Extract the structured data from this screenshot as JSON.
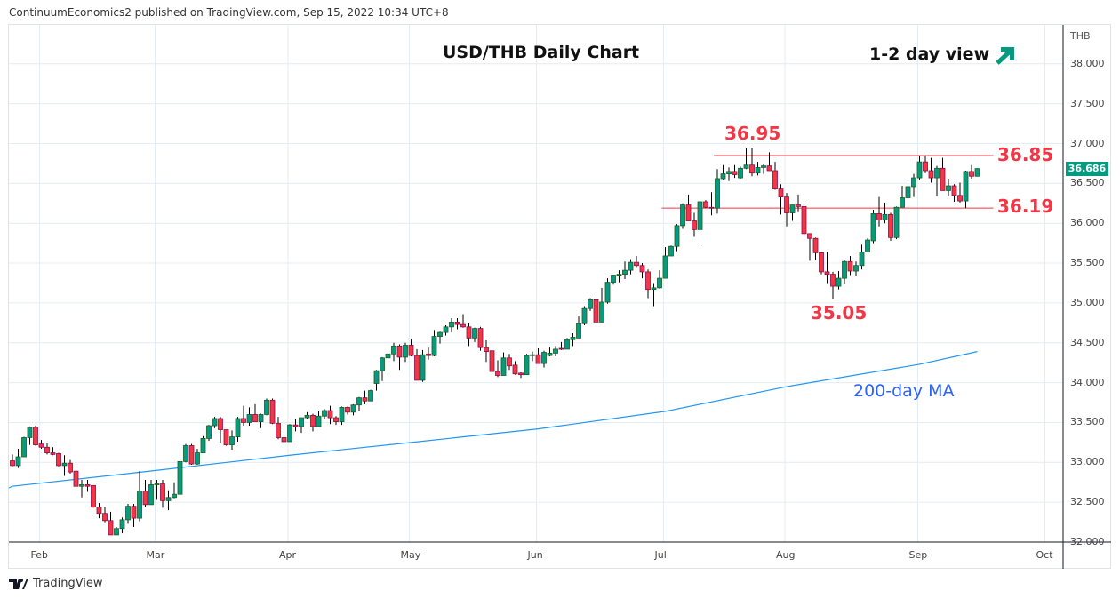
{
  "header": {
    "published": "ContinuumEconomics2 published on TradingView.com, Sep 15, 2022 10:34 UTC+8"
  },
  "footer": {
    "logo_text": "TradingView"
  },
  "colors": {
    "up": "#089981",
    "down": "#f23645",
    "ma": "#2196f3",
    "levels": "#f23645",
    "arrow": "#089981"
  },
  "chart_data": {
    "type": "candlestick",
    "title": "USD/THB Daily Chart",
    "view_label": "1-2 day view",
    "view_icon": "arrow-up-right-icon",
    "currency_label": "THB",
    "last_price": "36.686",
    "ylim": [
      32.0,
      38.0
    ],
    "y_ticks": [
      "38.000",
      "37.500",
      "37.000",
      "36.500",
      "36.000",
      "35.500",
      "35.000",
      "34.500",
      "34.000",
      "33.500",
      "33.000",
      "32.500",
      "32.000"
    ],
    "x_ticks": [
      {
        "label": "Feb",
        "date": "2022-02-01"
      },
      {
        "label": "Mar",
        "date": "2022-03-01"
      },
      {
        "label": "Apr",
        "date": "2022-04-01"
      },
      {
        "label": "May",
        "date": "2022-05-02"
      },
      {
        "label": "Jun",
        "date": "2022-06-01"
      },
      {
        "label": "Jul",
        "date": "2022-07-01"
      },
      {
        "label": "Aug",
        "date": "2022-08-01"
      },
      {
        "label": "Sep",
        "date": "2022-09-01"
      },
      {
        "label": "Oct",
        "date": "2022-10-03"
      }
    ],
    "grid": true,
    "annotations": [
      {
        "text": "36.95",
        "value": 36.95,
        "date": "2022-07-22"
      },
      {
        "text": "35.05",
        "value": 35.05,
        "date": "2022-08-11"
      },
      {
        "text": "200-day MA"
      }
    ],
    "levels": [
      {
        "label": "36.85",
        "value": 36.85,
        "from": "2022-07-14"
      },
      {
        "label": "36.19",
        "value": 36.19,
        "from": "2022-07-01"
      }
    ],
    "ma200": [
      [
        "2022-01-25",
        32.7
      ],
      [
        "2022-03-01",
        32.9
      ],
      [
        "2022-04-01",
        33.09
      ],
      [
        "2022-05-02",
        33.25
      ],
      [
        "2022-06-01",
        33.42
      ],
      [
        "2022-07-01",
        33.64
      ],
      [
        "2022-08-01",
        33.95
      ],
      [
        "2022-09-01",
        34.23
      ],
      [
        "2022-09-15",
        34.39
      ]
    ],
    "columns": [
      "date",
      "open",
      "high",
      "low",
      "close"
    ],
    "candles": [
      [
        "2022-01-25",
        33.02,
        33.1,
        32.95,
        32.96
      ],
      [
        "2022-01-26",
        32.96,
        33.17,
        32.93,
        33.07
      ],
      [
        "2022-01-27",
        33.07,
        33.32,
        33.07,
        33.31
      ],
      [
        "2022-01-28",
        33.31,
        33.45,
        33.22,
        33.44
      ],
      [
        "2022-01-31",
        33.44,
        33.46,
        33.21,
        33.22
      ],
      [
        "2022-02-01",
        33.23,
        33.28,
        33.17,
        33.19
      ],
      [
        "2022-02-02",
        33.19,
        33.24,
        33.1,
        33.12
      ],
      [
        "2022-02-03",
        33.12,
        33.19,
        33.09,
        33.1
      ],
      [
        "2022-02-04",
        33.11,
        33.12,
        32.95,
        32.96
      ],
      [
        "2022-02-07",
        32.96,
        33.09,
        32.83,
        32.99
      ],
      [
        "2022-02-08",
        32.99,
        33.03,
        32.86,
        32.88
      ],
      [
        "2022-02-09",
        32.89,
        32.93,
        32.7,
        32.7
      ],
      [
        "2022-02-10",
        32.7,
        32.78,
        32.56,
        32.72
      ],
      [
        "2022-02-11",
        32.72,
        32.78,
        32.63,
        32.7
      ],
      [
        "2022-02-14",
        32.71,
        32.71,
        32.43,
        32.44
      ],
      [
        "2022-02-15",
        32.44,
        32.49,
        32.3,
        32.36
      ],
      [
        "2022-02-16",
        32.36,
        32.44,
        32.25,
        32.27
      ],
      [
        "2022-02-17",
        32.27,
        32.38,
        32.09,
        32.09
      ],
      [
        "2022-02-18",
        32.09,
        32.19,
        32.09,
        32.17
      ],
      [
        "2022-02-21",
        32.17,
        32.31,
        32.11,
        32.28
      ],
      [
        "2022-02-22",
        32.28,
        32.48,
        32.23,
        32.45
      ],
      [
        "2022-02-23",
        32.45,
        32.48,
        32.19,
        32.3
      ],
      [
        "2022-02-24",
        32.3,
        32.89,
        32.26,
        32.64
      ],
      [
        "2022-02-25",
        32.64,
        32.78,
        32.44,
        32.47
      ],
      [
        "2022-02-28",
        32.47,
        32.78,
        32.47,
        32.72
      ],
      [
        "2022-03-01",
        32.72,
        32.78,
        32.53,
        32.73
      ],
      [
        "2022-03-02",
        32.73,
        32.78,
        32.43,
        32.52
      ],
      [
        "2022-03-03",
        32.52,
        32.65,
        32.4,
        32.56
      ],
      [
        "2022-03-04",
        32.56,
        32.75,
        32.55,
        32.6
      ],
      [
        "2022-03-07",
        32.6,
        33.07,
        32.6,
        33.01
      ],
      [
        "2022-03-08",
        33.01,
        33.23,
        33.0,
        33.21
      ],
      [
        "2022-03-09",
        33.21,
        33.23,
        32.97,
        32.98
      ],
      [
        "2022-03-10",
        32.98,
        33.17,
        32.97,
        33.12
      ],
      [
        "2022-03-11",
        33.12,
        33.33,
        33.12,
        33.3
      ],
      [
        "2022-03-14",
        33.3,
        33.47,
        33.27,
        33.46
      ],
      [
        "2022-03-15",
        33.46,
        33.57,
        33.43,
        33.55
      ],
      [
        "2022-03-16",
        33.55,
        33.57,
        33.25,
        33.41
      ],
      [
        "2022-03-17",
        33.41,
        33.41,
        33.21,
        33.22
      ],
      [
        "2022-03-18",
        33.22,
        33.4,
        33.16,
        33.32
      ],
      [
        "2022-03-21",
        33.32,
        33.57,
        33.26,
        33.55
      ],
      [
        "2022-03-22",
        33.55,
        33.71,
        33.46,
        33.5
      ],
      [
        "2022-03-23",
        33.5,
        33.69,
        33.46,
        33.6
      ],
      [
        "2022-03-24",
        33.6,
        33.73,
        33.51,
        33.51
      ],
      [
        "2022-03-25",
        33.51,
        33.61,
        33.43,
        33.6
      ],
      [
        "2022-03-28",
        33.6,
        33.8,
        33.59,
        33.78
      ],
      [
        "2022-03-29",
        33.78,
        33.8,
        33.48,
        33.49
      ],
      [
        "2022-03-30",
        33.49,
        33.57,
        33.29,
        33.31
      ],
      [
        "2022-03-31",
        33.31,
        33.38,
        33.2,
        33.26
      ],
      [
        "2022-04-01",
        33.26,
        33.48,
        33.26,
        33.47
      ],
      [
        "2022-04-04",
        33.47,
        33.54,
        33.39,
        33.45
      ],
      [
        "2022-04-05",
        33.45,
        33.56,
        33.37,
        33.56
      ],
      [
        "2022-04-06",
        33.56,
        33.63,
        33.55,
        33.59
      ],
      [
        "2022-04-07",
        33.59,
        33.61,
        33.39,
        33.45
      ],
      [
        "2022-04-08",
        33.45,
        33.64,
        33.45,
        33.58
      ],
      [
        "2022-04-11",
        33.58,
        33.67,
        33.54,
        33.65
      ],
      [
        "2022-04-12",
        33.65,
        33.71,
        33.48,
        33.56
      ],
      [
        "2022-04-13",
        33.56,
        33.58,
        33.47,
        33.51
      ],
      [
        "2022-04-14",
        33.51,
        33.7,
        33.47,
        33.69
      ],
      [
        "2022-04-15",
        33.69,
        33.7,
        33.6,
        33.63
      ],
      [
        "2022-04-18",
        33.63,
        33.73,
        33.59,
        33.72
      ],
      [
        "2022-04-19",
        33.72,
        33.82,
        33.65,
        33.81
      ],
      [
        "2022-04-20",
        33.81,
        33.9,
        33.73,
        33.77
      ],
      [
        "2022-04-21",
        33.77,
        33.91,
        33.77,
        33.9
      ],
      [
        "2022-04-22",
        33.99,
        34.16,
        33.9,
        34.15
      ],
      [
        "2022-04-25",
        34.15,
        34.32,
        34.02,
        34.31
      ],
      [
        "2022-04-26",
        34.31,
        34.41,
        34.27,
        34.36
      ],
      [
        "2022-04-27",
        34.36,
        34.5,
        34.27,
        34.46
      ],
      [
        "2022-04-28",
        34.46,
        34.48,
        34.16,
        34.32
      ],
      [
        "2022-04-29",
        34.32,
        34.5,
        34.26,
        34.47
      ],
      [
        "2022-05-02",
        34.47,
        34.54,
        34.33,
        34.34
      ],
      [
        "2022-05-03",
        34.34,
        34.42,
        34.03,
        34.03
      ],
      [
        "2022-05-04",
        34.03,
        34.41,
        34.01,
        34.35
      ],
      [
        "2022-05-05",
        34.36,
        34.44,
        34.29,
        34.34
      ],
      [
        "2022-05-06",
        34.34,
        34.66,
        34.33,
        34.58
      ],
      [
        "2022-05-09",
        34.58,
        34.64,
        34.49,
        34.63
      ],
      [
        "2022-05-10",
        34.63,
        34.72,
        34.59,
        34.7
      ],
      [
        "2022-05-11",
        34.7,
        34.81,
        34.63,
        34.76
      ],
      [
        "2022-05-12",
        34.76,
        34.81,
        34.67,
        34.73
      ],
      [
        "2022-05-13",
        34.73,
        34.86,
        34.69,
        34.7
      ],
      [
        "2022-05-16",
        34.7,
        34.75,
        34.46,
        34.56
      ],
      [
        "2022-05-17",
        34.56,
        34.69,
        34.51,
        34.68
      ],
      [
        "2022-05-18",
        34.68,
        34.7,
        34.4,
        34.44
      ],
      [
        "2022-05-19",
        34.44,
        34.53,
        34.26,
        34.39
      ],
      [
        "2022-05-20",
        34.4,
        34.42,
        34.14,
        34.14
      ],
      [
        "2022-05-23",
        34.14,
        34.28,
        34.07,
        34.09
      ],
      [
        "2022-05-24",
        34.09,
        34.38,
        34.09,
        34.31
      ],
      [
        "2022-05-25",
        34.31,
        34.36,
        34.16,
        34.21
      ],
      [
        "2022-05-26",
        34.22,
        34.27,
        34.1,
        34.11
      ],
      [
        "2022-05-27",
        34.12,
        34.13,
        34.06,
        34.1
      ],
      [
        "2022-05-30",
        34.1,
        34.36,
        34.1,
        34.34
      ],
      [
        "2022-05-31",
        34.34,
        34.39,
        34.27,
        34.35
      ],
      [
        "2022-06-01",
        34.35,
        34.43,
        34.24,
        34.24
      ],
      [
        "2022-06-02",
        34.24,
        34.4,
        34.19,
        34.38
      ],
      [
        "2022-06-03",
        34.34,
        34.44,
        34.33,
        34.37
      ],
      [
        "2022-06-06",
        34.37,
        34.46,
        34.33,
        34.42
      ],
      [
        "2022-06-07",
        34.43,
        34.51,
        34.41,
        34.42
      ],
      [
        "2022-06-08",
        34.42,
        34.56,
        34.42,
        34.54
      ],
      [
        "2022-06-09",
        34.54,
        34.62,
        34.46,
        34.57
      ],
      [
        "2022-06-10",
        34.56,
        34.83,
        34.56,
        34.74
      ],
      [
        "2022-06-13",
        34.74,
        34.96,
        34.72,
        34.93
      ],
      [
        "2022-06-14",
        34.93,
        35.06,
        34.9,
        35.04
      ],
      [
        "2022-06-15",
        35.04,
        35.14,
        34.75,
        34.76
      ],
      [
        "2022-06-16",
        34.76,
        35.19,
        34.76,
        35.01
      ],
      [
        "2022-06-17",
        35.01,
        35.31,
        34.99,
        35.26
      ],
      [
        "2022-06-20",
        35.26,
        35.35,
        35.23,
        35.35
      ],
      [
        "2022-06-21",
        35.35,
        35.41,
        35.26,
        35.36
      ],
      [
        "2022-06-22",
        35.36,
        35.52,
        35.3,
        35.41
      ],
      [
        "2022-06-23",
        35.41,
        35.55,
        35.36,
        35.51
      ],
      [
        "2022-06-24",
        35.51,
        35.59,
        35.45,
        35.47
      ],
      [
        "2022-06-27",
        35.47,
        35.5,
        35.31,
        35.39
      ],
      [
        "2022-06-28",
        35.39,
        35.42,
        35.06,
        35.17
      ],
      [
        "2022-06-29",
        35.17,
        35.25,
        34.96,
        35.19
      ],
      [
        "2022-06-30",
        35.19,
        35.41,
        35.18,
        35.31
      ],
      [
        "2022-07-01",
        35.31,
        35.7,
        35.31,
        35.59
      ],
      [
        "2022-07-04",
        35.59,
        35.72,
        35.59,
        35.71
      ],
      [
        "2022-07-05",
        35.71,
        35.99,
        35.65,
        35.97
      ],
      [
        "2022-07-06",
        35.97,
        36.25,
        35.93,
        36.23
      ],
      [
        "2022-07-07",
        36.23,
        36.36,
        36.03,
        36.03
      ],
      [
        "2022-07-08",
        36.03,
        36.13,
        35.83,
        35.92
      ],
      [
        "2022-07-11",
        35.92,
        36.29,
        35.71,
        36.27
      ],
      [
        "2022-07-12",
        36.27,
        36.29,
        36.19,
        36.2
      ],
      [
        "2022-07-13",
        36.2,
        36.39,
        36.1,
        36.19
      ],
      [
        "2022-07-14",
        36.19,
        36.68,
        36.12,
        36.56
      ],
      [
        "2022-07-15",
        36.56,
        36.73,
        36.55,
        36.62
      ],
      [
        "2022-07-18",
        36.62,
        36.7,
        36.53,
        36.65
      ],
      [
        "2022-07-19",
        36.65,
        36.73,
        36.57,
        36.61
      ],
      [
        "2022-07-20",
        36.57,
        36.71,
        36.56,
        36.69
      ],
      [
        "2022-07-21",
        36.69,
        36.94,
        36.68,
        36.73
      ],
      [
        "2022-07-22",
        36.73,
        36.95,
        36.59,
        36.63
      ],
      [
        "2022-07-25",
        36.63,
        36.77,
        36.6,
        36.7
      ],
      [
        "2022-07-26",
        36.7,
        36.74,
        36.62,
        36.72
      ],
      [
        "2022-07-27",
        36.72,
        36.89,
        36.66,
        36.66
      ],
      [
        "2022-07-28",
        36.66,
        36.77,
        36.42,
        36.43
      ],
      [
        "2022-07-29",
        36.43,
        36.49,
        36.11,
        36.33
      ],
      [
        "2022-08-01",
        36.33,
        36.38,
        35.96,
        36.13
      ],
      [
        "2022-08-02",
        36.13,
        36.23,
        36.03,
        36.23
      ],
      [
        "2022-08-03",
        36.23,
        36.36,
        36.15,
        36.21
      ],
      [
        "2022-08-04",
        36.21,
        36.27,
        35.85,
        35.87
      ],
      [
        "2022-08-05",
        35.87,
        35.87,
        35.53,
        35.81
      ],
      [
        "2022-08-08",
        35.81,
        35.82,
        35.54,
        35.63
      ],
      [
        "2022-08-09",
        35.63,
        35.64,
        35.36,
        35.39
      ],
      [
        "2022-08-10",
        35.39,
        35.64,
        35.25,
        35.36
      ],
      [
        "2022-08-11",
        35.36,
        35.39,
        35.05,
        35.21
      ],
      [
        "2022-08-12",
        35.21,
        35.4,
        35.17,
        35.31
      ],
      [
        "2022-08-15",
        35.31,
        35.54,
        35.24,
        35.52
      ],
      [
        "2022-08-16",
        35.52,
        35.59,
        35.35,
        35.4
      ],
      [
        "2022-08-17",
        35.4,
        35.52,
        35.34,
        35.47
      ],
      [
        "2022-08-18",
        35.47,
        35.73,
        35.42,
        35.64
      ],
      [
        "2022-08-19",
        35.64,
        35.81,
        35.64,
        35.79
      ],
      [
        "2022-08-22",
        35.78,
        36.17,
        35.75,
        36.12
      ],
      [
        "2022-08-23",
        36.12,
        36.33,
        35.96,
        36.04
      ],
      [
        "2022-08-24",
        36.04,
        36.26,
        36.0,
        36.11
      ],
      [
        "2022-08-25",
        36.11,
        36.13,
        35.78,
        35.82
      ],
      [
        "2022-08-26",
        35.82,
        36.21,
        35.8,
        36.2
      ],
      [
        "2022-08-29",
        36.2,
        36.47,
        36.2,
        36.32
      ],
      [
        "2022-08-30",
        36.32,
        36.51,
        36.31,
        36.46
      ],
      [
        "2022-08-31",
        36.46,
        36.62,
        36.33,
        36.57
      ],
      [
        "2022-09-01",
        36.57,
        36.84,
        36.55,
        36.77
      ],
      [
        "2022-09-02",
        36.77,
        36.85,
        36.63,
        36.66
      ],
      [
        "2022-09-05",
        36.66,
        36.82,
        36.51,
        36.57
      ],
      [
        "2022-09-06",
        36.57,
        36.72,
        36.34,
        36.69
      ],
      [
        "2022-09-07",
        36.69,
        36.82,
        36.41,
        36.41
      ],
      [
        "2022-09-08",
        36.41,
        36.56,
        36.34,
        36.47
      ],
      [
        "2022-09-09",
        36.47,
        36.49,
        36.27,
        36.35
      ],
      [
        "2022-09-12",
        36.35,
        36.51,
        36.26,
        36.28
      ],
      [
        "2022-09-13",
        36.28,
        36.66,
        36.19,
        36.65
      ],
      [
        "2022-09-14",
        36.65,
        36.73,
        36.56,
        36.59
      ],
      [
        "2022-09-15",
        36.59,
        36.69,
        36.59,
        36.686
      ]
    ]
  }
}
